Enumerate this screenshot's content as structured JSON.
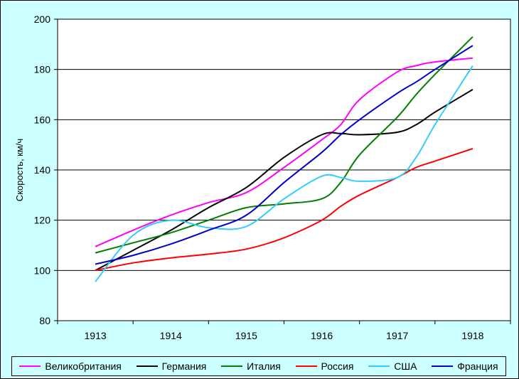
{
  "chart_data": {
    "type": "line",
    "title": "",
    "xlabel": "",
    "ylabel": "Скорость, км/ч",
    "categories": [
      "1913",
      "1914",
      "1915",
      "1916",
      "1917",
      "1918"
    ],
    "ylim": [
      80,
      200
    ],
    "yticks": [
      "80",
      "100",
      "120",
      "140",
      "160",
      "180",
      "200"
    ],
    "grid": true,
    "legend_position": "bottom",
    "series": [
      {
        "name": "Великобритания",
        "color": "#FF00FF",
        "x": [
          1913,
          1913.5,
          1914,
          1914.5,
          1915,
          1915.5,
          1916,
          1916.25,
          1916.5,
          1917,
          1917.25,
          1917.5,
          1918
        ],
        "y": [
          109.5,
          116,
          122,
          127,
          131,
          141,
          152,
          158,
          168,
          179,
          181.5,
          183,
          184.5
        ]
      },
      {
        "name": "Германия",
        "color": "#000000",
        "x": [
          1913,
          1913.5,
          1914,
          1914.5,
          1915,
          1915.5,
          1916,
          1916.25,
          1916.5,
          1917,
          1917.25,
          1917.5,
          1918
        ],
        "y": [
          100,
          108,
          116,
          125,
          133,
          145,
          154,
          154.5,
          154,
          155,
          158,
          163,
          172
        ]
      },
      {
        "name": "Италия",
        "color": "#008000",
        "x": [
          1913,
          1913.5,
          1914,
          1914.5,
          1915,
          1915.5,
          1916,
          1916.25,
          1916.5,
          1917,
          1917.25,
          1917.5,
          1918
        ],
        "y": [
          107,
          111,
          115,
          120,
          125,
          126.5,
          128.5,
          135,
          146,
          161,
          170,
          178,
          193
        ]
      },
      {
        "name": "Россия",
        "color": "#FF0000",
        "x": [
          1913,
          1913.5,
          1914,
          1914.5,
          1915,
          1915.5,
          1916,
          1916.25,
          1916.5,
          1917,
          1917.25,
          1917.5,
          1918
        ],
        "y": [
          100,
          103,
          105,
          106.5,
          108.5,
          113,
          120,
          125.5,
          130,
          137,
          141,
          143.5,
          148.5
        ]
      },
      {
        "name": "США",
        "color": "#33CCFF",
        "x": [
          1913,
          1913.5,
          1914,
          1914.5,
          1915,
          1915.5,
          1916,
          1916.25,
          1916.5,
          1917,
          1917.25,
          1917.5,
          1918
        ],
        "y": [
          95.5,
          114,
          120,
          117,
          117.5,
          128.5,
          137.5,
          137,
          135.5,
          137,
          145,
          158,
          181.5
        ]
      },
      {
        "name": "Франция",
        "color": "#0000CC",
        "x": [
          1913,
          1913.5,
          1914,
          1914.5,
          1915,
          1915.5,
          1916,
          1916.25,
          1916.5,
          1917,
          1917.25,
          1917.5,
          1918
        ],
        "y": [
          102.5,
          106,
          110.5,
          116,
          122,
          135,
          147,
          154,
          160,
          170.5,
          175,
          180,
          189.5
        ]
      }
    ]
  }
}
